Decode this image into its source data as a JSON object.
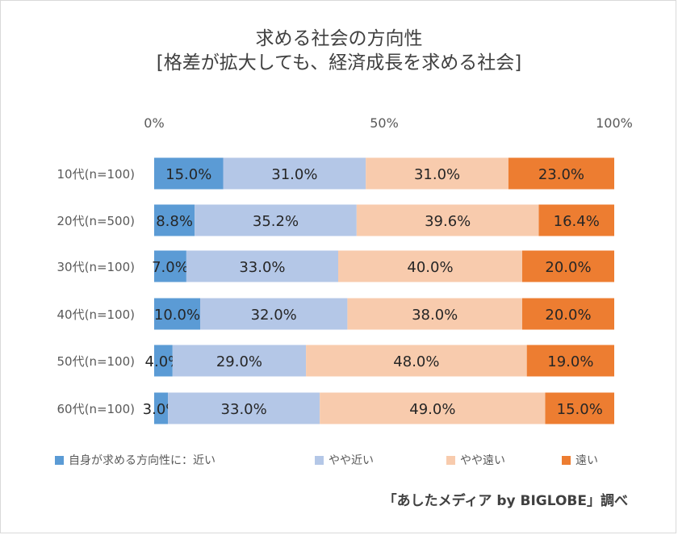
{
  "chart_data": {
    "type": "bar",
    "orientation": "horizontal",
    "stacked": "percent",
    "title": "求める社会の方向性",
    "subtitle": "[格差が拡大しても、経済成長を求める社会]",
    "categories": [
      "10代(n=100)",
      "20代(n=500)",
      "30代(n=100)",
      "40代(n=100)",
      "50代(n=100)",
      "60代(n=100)"
    ],
    "series": [
      {
        "name": "自身が求める方向性に：近い",
        "color": "#5b9bd5",
        "values": [
          15.0,
          8.8,
          7.0,
          10.0,
          4.0,
          3.0
        ]
      },
      {
        "name": "やや近い",
        "color": "#b4c7e7",
        "values": [
          31.0,
          35.2,
          33.0,
          32.0,
          29.0,
          33.0
        ]
      },
      {
        "name": "やや遠い",
        "color": "#f8cbad",
        "values": [
          31.0,
          39.6,
          40.0,
          38.0,
          48.0,
          49.0
        ]
      },
      {
        "name": "遠い",
        "color": "#ed7d31",
        "values": [
          23.0,
          16.4,
          20.0,
          20.0,
          19.0,
          15.0
        ]
      }
    ],
    "value_labels": [
      [
        "15.0%",
        "31.0%",
        "31.0%",
        "23.0%"
      ],
      [
        "8.8%",
        "35.2%",
        "39.6%",
        "16.4%"
      ],
      [
        "7.0%",
        "33.0%",
        "40.0%",
        "20.0%"
      ],
      [
        "10.0%",
        "32.0%",
        "38.0%",
        "20.0%"
      ],
      [
        "4.0%",
        "29.0%",
        "48.0%",
        "19.0%"
      ],
      [
        "3.0%",
        "33.0%",
        "49.0%",
        "15.0%"
      ]
    ],
    "x_ticks": [
      "0%",
      "50%",
      "100%"
    ],
    "xlim": [
      0,
      100
    ],
    "x_axis_position": "top",
    "grid": false,
    "legend_position": "bottom"
  },
  "credit": "「あしたメディア by BIGLOBE」調べ"
}
